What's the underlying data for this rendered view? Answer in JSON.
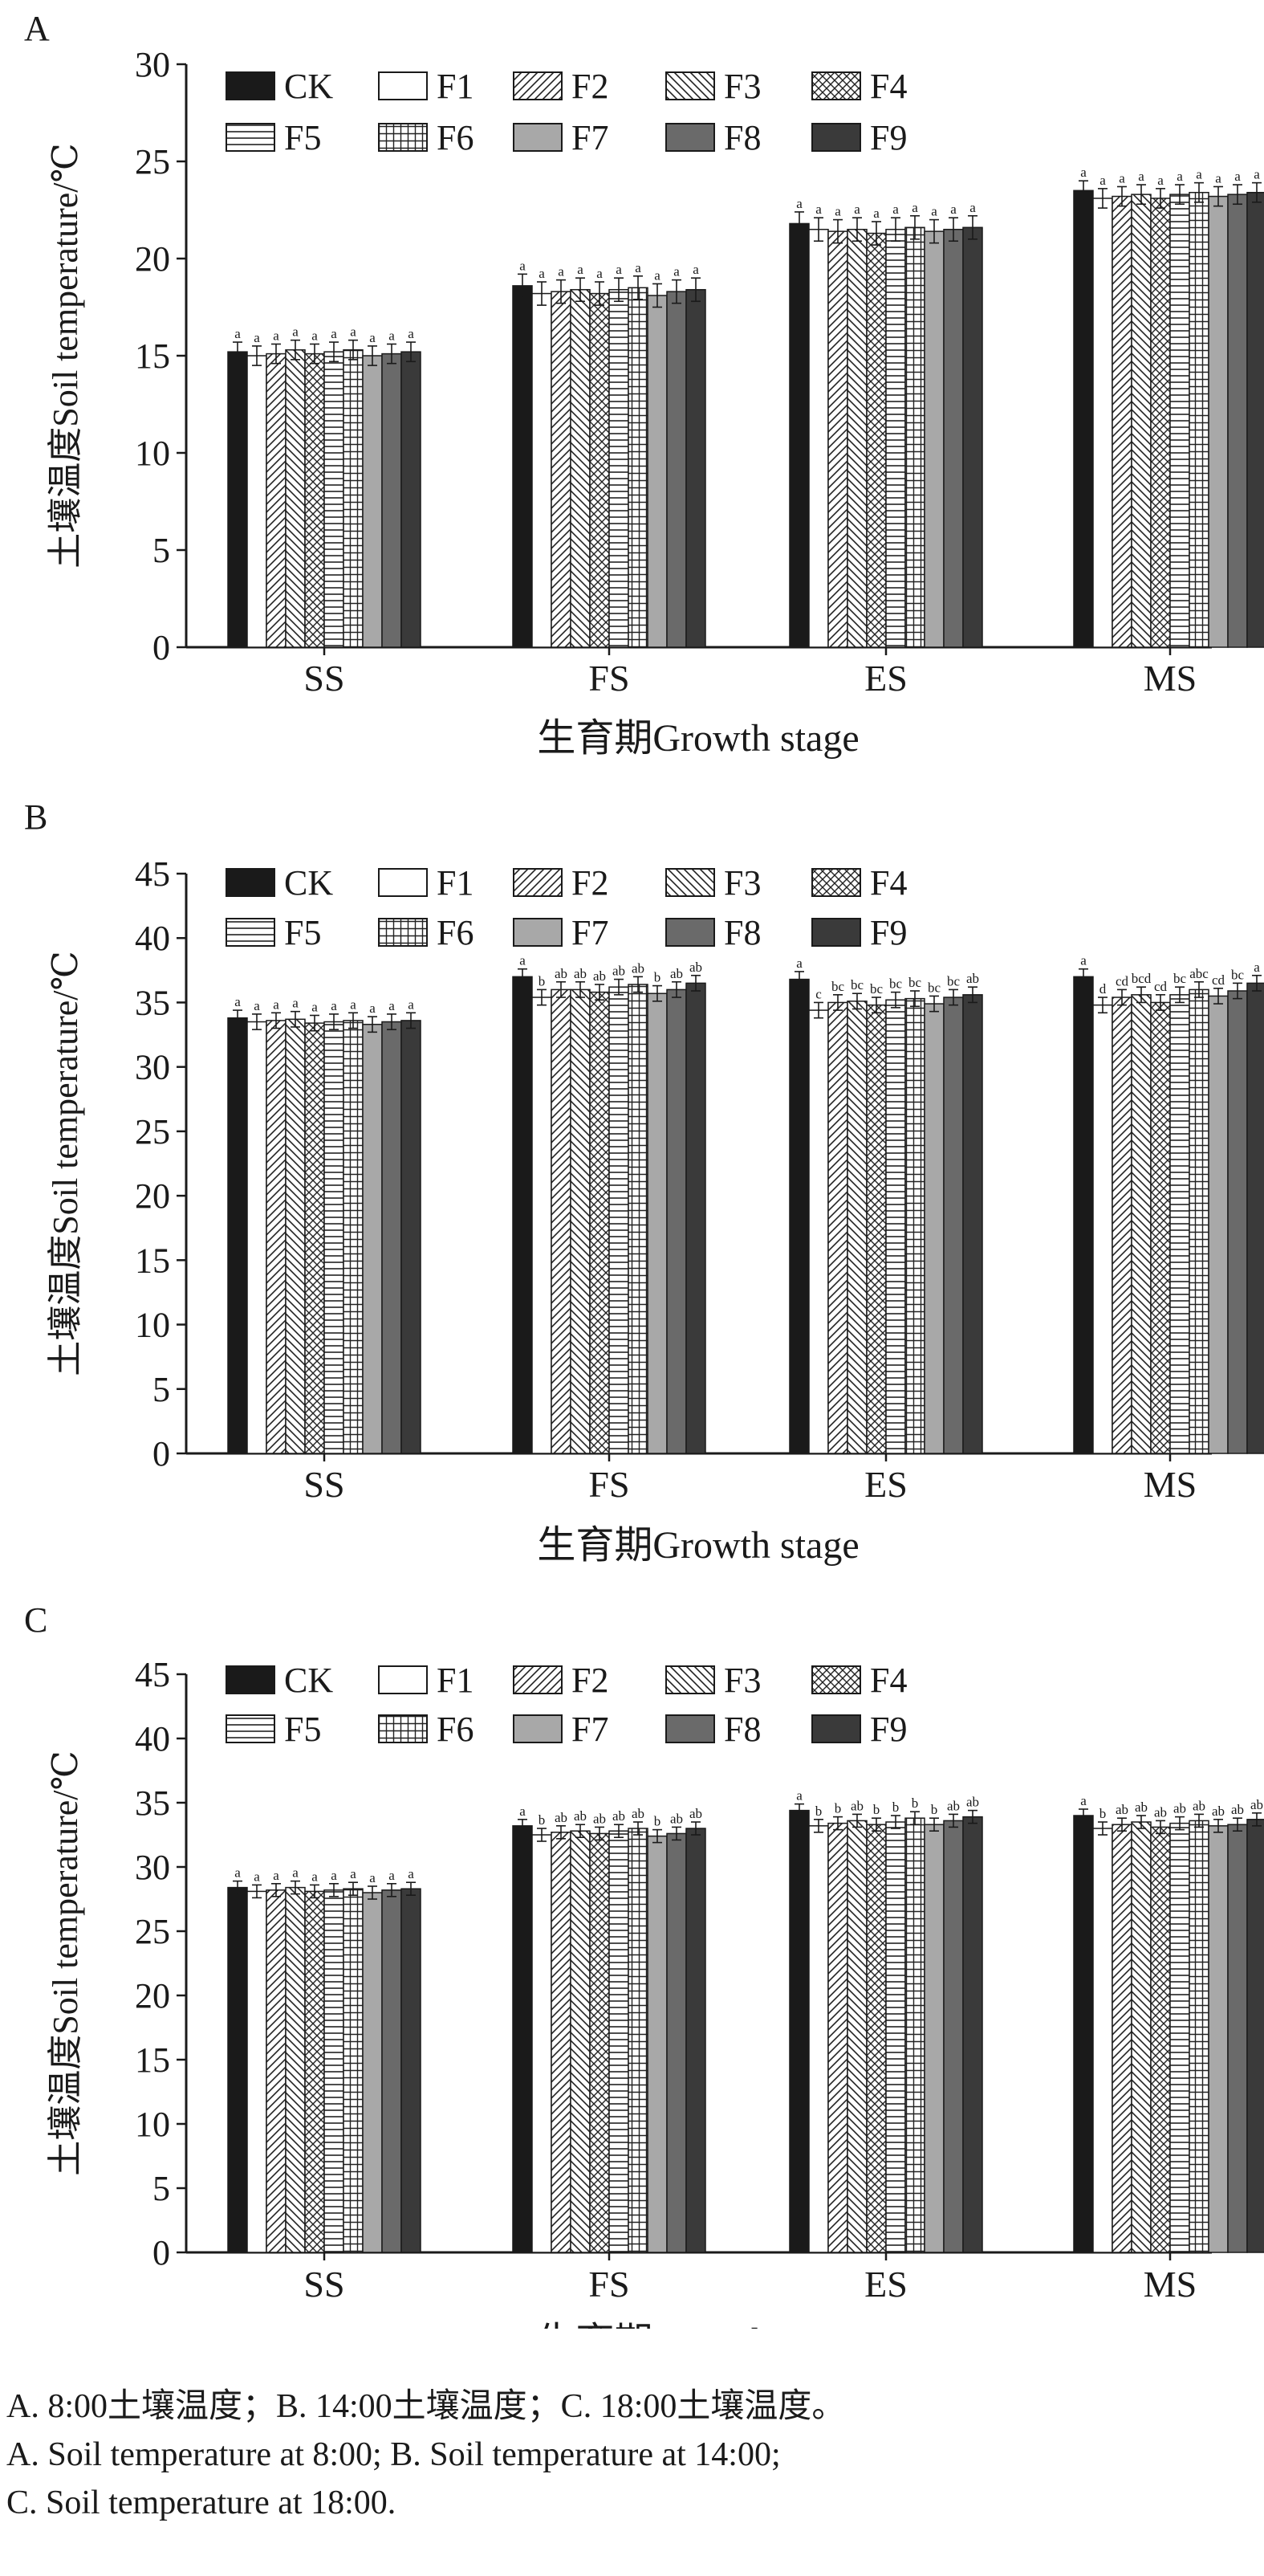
{
  "chart_data": [
    {
      "type": "bar",
      "panel_label": "A",
      "categories": [
        "SS",
        "FS",
        "ES",
        "MS"
      ],
      "xlabel": "生育期Growth stage",
      "ylabel": "土壤温度Soil temperature/℃",
      "ylim": [
        0,
        30
      ],
      "yticks": [
        0,
        5,
        10,
        15,
        20,
        25,
        30
      ],
      "grid": false,
      "legend_position": "top-left",
      "series": [
        {
          "name": "CK",
          "values": [
            15.2,
            18.6,
            21.8,
            23.5
          ],
          "errors": [
            0.5,
            0.6,
            0.6,
            0.5
          ],
          "sig": [
            "a",
            "a",
            "a",
            "a"
          ]
        },
        {
          "name": "F1",
          "values": [
            15.0,
            18.2,
            21.5,
            23.1
          ],
          "errors": [
            0.5,
            0.6,
            0.6,
            0.5
          ],
          "sig": [
            "a",
            "a",
            "a",
            "a"
          ]
        },
        {
          "name": "F2",
          "values": [
            15.1,
            18.3,
            21.4,
            23.2
          ],
          "errors": [
            0.5,
            0.6,
            0.6,
            0.5
          ],
          "sig": [
            "a",
            "a",
            "a",
            "a"
          ]
        },
        {
          "name": "F3",
          "values": [
            15.3,
            18.4,
            21.5,
            23.3
          ],
          "errors": [
            0.5,
            0.6,
            0.6,
            0.5
          ],
          "sig": [
            "a",
            "a",
            "a",
            "a"
          ]
        },
        {
          "name": "F4",
          "values": [
            15.1,
            18.2,
            21.3,
            23.1
          ],
          "errors": [
            0.5,
            0.6,
            0.6,
            0.5
          ],
          "sig": [
            "a",
            "a",
            "a",
            "a"
          ]
        },
        {
          "name": "F5",
          "values": [
            15.2,
            18.4,
            21.5,
            23.3
          ],
          "errors": [
            0.5,
            0.6,
            0.6,
            0.5
          ],
          "sig": [
            "a",
            "a",
            "a",
            "a"
          ]
        },
        {
          "name": "F6",
          "values": [
            15.3,
            18.5,
            21.6,
            23.4
          ],
          "errors": [
            0.5,
            0.6,
            0.6,
            0.5
          ],
          "sig": [
            "a",
            "a",
            "a",
            "a"
          ]
        },
        {
          "name": "F7",
          "values": [
            15.0,
            18.1,
            21.4,
            23.2
          ],
          "errors": [
            0.5,
            0.6,
            0.6,
            0.5
          ],
          "sig": [
            "a",
            "a",
            "a",
            "a"
          ]
        },
        {
          "name": "F8",
          "values": [
            15.1,
            18.3,
            21.5,
            23.3
          ],
          "errors": [
            0.5,
            0.6,
            0.6,
            0.5
          ],
          "sig": [
            "a",
            "a",
            "a",
            "a"
          ]
        },
        {
          "name": "F9",
          "values": [
            15.2,
            18.4,
            21.6,
            23.4
          ],
          "errors": [
            0.5,
            0.6,
            0.6,
            0.5
          ],
          "sig": [
            "a",
            "a",
            "a",
            "a"
          ]
        }
      ]
    },
    {
      "type": "bar",
      "panel_label": "B",
      "categories": [
        "SS",
        "FS",
        "ES",
        "MS"
      ],
      "xlabel": "生育期Growth stage",
      "ylabel": "土壤温度Soil temperature/℃",
      "ylim": [
        0,
        45
      ],
      "yticks": [
        0,
        5,
        10,
        15,
        20,
        25,
        30,
        35,
        40,
        45
      ],
      "grid": false,
      "legend_position": "top-left",
      "series": [
        {
          "name": "CK",
          "values": [
            33.8,
            37.0,
            36.8,
            37.0
          ],
          "errors": [
            0.6,
            0.6,
            0.6,
            0.6
          ],
          "sig": [
            "a",
            "a",
            "a",
            "a"
          ]
        },
        {
          "name": "F1",
          "values": [
            33.5,
            35.4,
            34.4,
            34.8
          ],
          "errors": [
            0.6,
            0.6,
            0.6,
            0.6
          ],
          "sig": [
            "a",
            "b",
            "c",
            "d"
          ]
        },
        {
          "name": "F2",
          "values": [
            33.6,
            36.0,
            35.0,
            35.4
          ],
          "errors": [
            0.6,
            0.6,
            0.6,
            0.6
          ],
          "sig": [
            "a",
            "ab",
            "bc",
            "cd"
          ]
        },
        {
          "name": "F3",
          "values": [
            33.7,
            36.0,
            35.1,
            35.6
          ],
          "errors": [
            0.6,
            0.6,
            0.6,
            0.6
          ],
          "sig": [
            "a",
            "ab",
            "bc",
            "bcd"
          ]
        },
        {
          "name": "F4",
          "values": [
            33.4,
            35.8,
            34.8,
            35.0
          ],
          "errors": [
            0.6,
            0.6,
            0.6,
            0.6
          ],
          "sig": [
            "a",
            "ab",
            "bc",
            "cd"
          ]
        },
        {
          "name": "F5",
          "values": [
            33.5,
            36.2,
            35.2,
            35.6
          ],
          "errors": [
            0.6,
            0.6,
            0.6,
            0.6
          ],
          "sig": [
            "a",
            "ab",
            "bc",
            "bc"
          ]
        },
        {
          "name": "F6",
          "values": [
            33.6,
            36.4,
            35.3,
            36.0
          ],
          "errors": [
            0.6,
            0.6,
            0.6,
            0.6
          ],
          "sig": [
            "a",
            "ab",
            "bc",
            "abc"
          ]
        },
        {
          "name": "F7",
          "values": [
            33.3,
            35.7,
            34.9,
            35.5
          ],
          "errors": [
            0.6,
            0.6,
            0.6,
            0.6
          ],
          "sig": [
            "a",
            "b",
            "bc",
            "cd"
          ]
        },
        {
          "name": "F8",
          "values": [
            33.5,
            36.0,
            35.4,
            35.9
          ],
          "errors": [
            0.6,
            0.6,
            0.6,
            0.6
          ],
          "sig": [
            "a",
            "ab",
            "bc",
            "bc"
          ]
        },
        {
          "name": "F9",
          "values": [
            33.6,
            36.5,
            35.6,
            36.5
          ],
          "errors": [
            0.6,
            0.6,
            0.6,
            0.6
          ],
          "sig": [
            "a",
            "ab",
            "ab",
            "a"
          ]
        }
      ]
    },
    {
      "type": "bar",
      "panel_label": "C",
      "categories": [
        "SS",
        "FS",
        "ES",
        "MS"
      ],
      "xlabel": "生育期Growth stage",
      "ylabel": "土壤温度Soil temperature/℃",
      "ylim": [
        0,
        45
      ],
      "yticks": [
        0,
        5,
        10,
        15,
        20,
        25,
        30,
        35,
        40,
        45
      ],
      "grid": false,
      "legend_position": "top-left",
      "series": [
        {
          "name": "CK",
          "values": [
            28.4,
            33.2,
            34.4,
            34.0
          ],
          "errors": [
            0.5,
            0.5,
            0.5,
            0.5
          ],
          "sig": [
            "a",
            "a",
            "a",
            "a"
          ]
        },
        {
          "name": "F1",
          "values": [
            28.1,
            32.5,
            33.2,
            33.0
          ],
          "errors": [
            0.5,
            0.5,
            0.5,
            0.5
          ],
          "sig": [
            "a",
            "b",
            "b",
            "b"
          ]
        },
        {
          "name": "F2",
          "values": [
            28.2,
            32.7,
            33.4,
            33.3
          ],
          "errors": [
            0.5,
            0.5,
            0.5,
            0.5
          ],
          "sig": [
            "a",
            "ab",
            "b",
            "ab"
          ]
        },
        {
          "name": "F3",
          "values": [
            28.4,
            32.8,
            33.6,
            33.5
          ],
          "errors": [
            0.5,
            0.5,
            0.5,
            0.5
          ],
          "sig": [
            "a",
            "ab",
            "ab",
            "ab"
          ]
        },
        {
          "name": "F4",
          "values": [
            28.1,
            32.6,
            33.3,
            33.1
          ],
          "errors": [
            0.5,
            0.5,
            0.5,
            0.5
          ],
          "sig": [
            "a",
            "ab",
            "b",
            "ab"
          ]
        },
        {
          "name": "F5",
          "values": [
            28.2,
            32.8,
            33.5,
            33.4
          ],
          "errors": [
            0.5,
            0.5,
            0.5,
            0.5
          ],
          "sig": [
            "a",
            "ab",
            "b",
            "ab"
          ]
        },
        {
          "name": "F6",
          "values": [
            28.3,
            33.0,
            33.8,
            33.6
          ],
          "errors": [
            0.5,
            0.5,
            0.5,
            0.5
          ],
          "sig": [
            "a",
            "ab",
            "b",
            "ab"
          ]
        },
        {
          "name": "F7",
          "values": [
            28.0,
            32.4,
            33.3,
            33.2
          ],
          "errors": [
            0.5,
            0.5,
            0.5,
            0.5
          ],
          "sig": [
            "a",
            "b",
            "b",
            "ab"
          ]
        },
        {
          "name": "F8",
          "values": [
            28.2,
            32.6,
            33.6,
            33.3
          ],
          "errors": [
            0.5,
            0.5,
            0.5,
            0.5
          ],
          "sig": [
            "a",
            "ab",
            "ab",
            "ab"
          ]
        },
        {
          "name": "F9",
          "values": [
            28.3,
            33.0,
            33.9,
            33.7
          ],
          "errors": [
            0.5,
            0.5,
            0.5,
            0.5
          ],
          "sig": [
            "a",
            "ab",
            "ab",
            "ab"
          ]
        }
      ]
    }
  ],
  "series_colors": [
    "#1a1a1a",
    "#ffffff",
    "#ffffff",
    "#ffffff",
    "#ffffff",
    "#ffffff",
    "#ffffff",
    "#a8a8a8",
    "#6a6a6a",
    "#3a3a3a"
  ],
  "series_patterns": [
    "solid",
    "none",
    "diag-up",
    "diag-down",
    "crosshatch",
    "horizontal",
    "grid",
    "solid",
    "solid",
    "solid"
  ],
  "caption": {
    "line1": "A. 8:00土壤温度；B. 14:00土壤温度；C. 18:00土壤温度。",
    "line2": "A. Soil temperature at 8:00; B. Soil temperature at 14:00;",
    "line3": "C. Soil temperature at 18:00."
  }
}
